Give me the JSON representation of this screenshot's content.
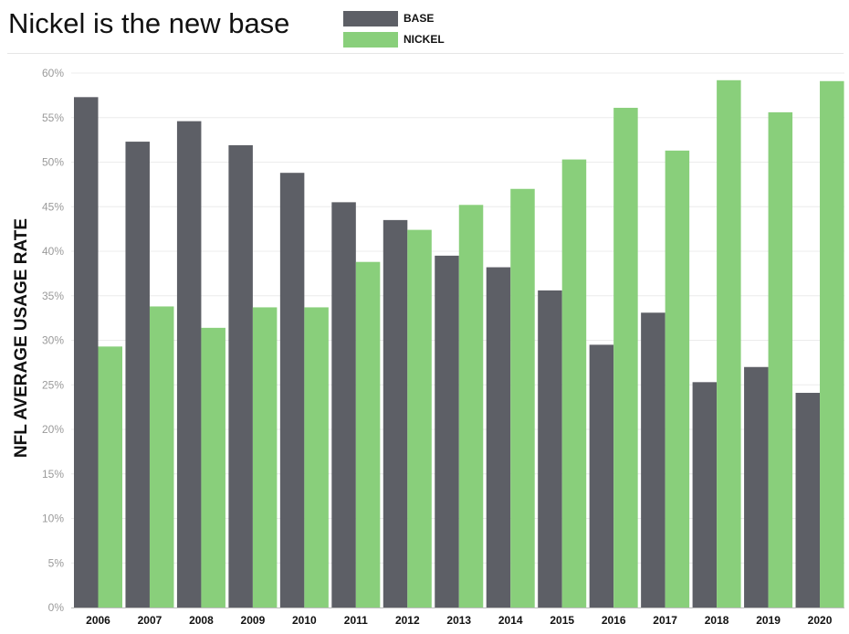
{
  "title": "Nickel is the new base",
  "legend": [
    {
      "label": "BASE",
      "color": "#5d5f66"
    },
    {
      "label": "NICKEL",
      "color": "#89cf7b"
    }
  ],
  "chart_data": {
    "type": "bar",
    "ylabel": "NFL AVERAGE USAGE RATE",
    "xlabel": "",
    "ylim": [
      0,
      60
    ],
    "yticks": [
      "0%",
      "5%",
      "10%",
      "15%",
      "20%",
      "25%",
      "30%",
      "35%",
      "40%",
      "45%",
      "50%",
      "55%",
      "60%"
    ],
    "categories": [
      "2006",
      "2007",
      "2008",
      "2009",
      "2010",
      "2011",
      "2012",
      "2013",
      "2014",
      "2015",
      "2016",
      "2017",
      "2018",
      "2019",
      "2020"
    ],
    "series": [
      {
        "name": "BASE",
        "color": "#5d5f66",
        "values": [
          57.3,
          52.3,
          54.6,
          51.9,
          48.8,
          45.5,
          43.5,
          39.5,
          38.2,
          35.6,
          29.5,
          33.1,
          25.3,
          27.0,
          24.1
        ]
      },
      {
        "name": "NICKEL",
        "color": "#89cf7b",
        "values": [
          29.3,
          33.8,
          31.4,
          33.7,
          33.7,
          38.8,
          42.4,
          45.2,
          47.0,
          50.3,
          56.1,
          51.3,
          59.2,
          55.6,
          59.1
        ]
      }
    ],
    "grid": true,
    "legend_position": "top"
  }
}
